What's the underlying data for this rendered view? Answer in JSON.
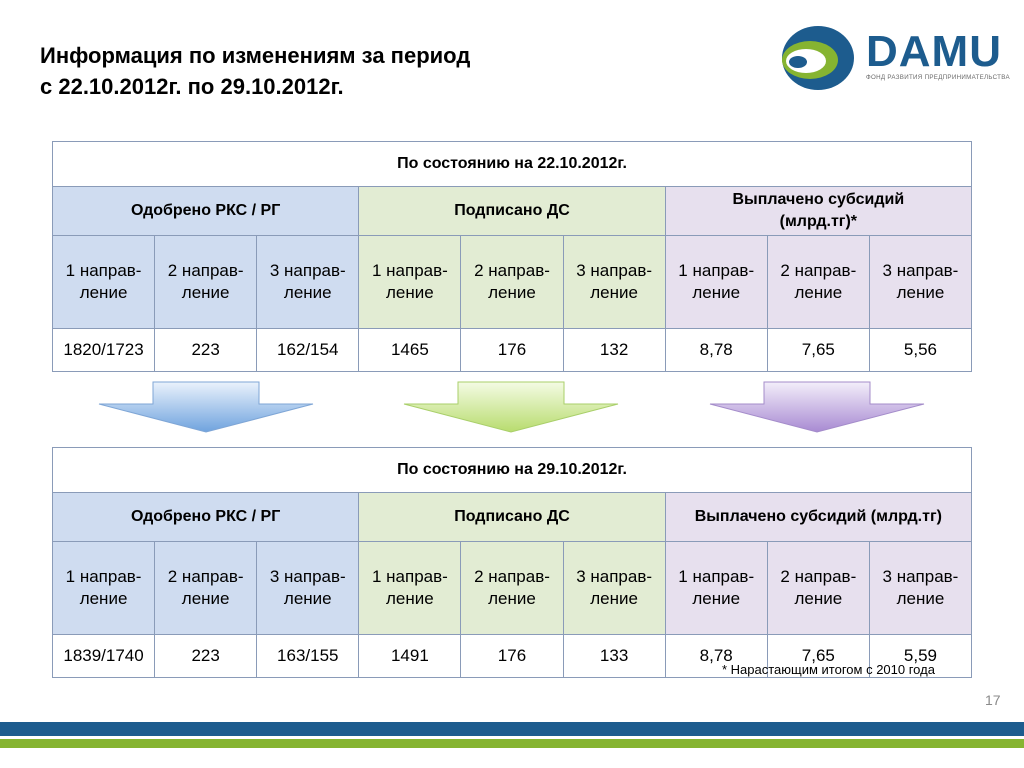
{
  "title": {
    "line1": "Информация по изменениям за период",
    "line2": "с 22.10.2012г. по 29.10.2012г."
  },
  "logo": {
    "wordmark": "DAMU",
    "subtitle": "ФОНД РАЗВИТИЯ ПРЕДПРИНИМАТЕЛЬСТВА",
    "colors": {
      "blue": "#1d5c8e",
      "green": "#86b431"
    }
  },
  "table1": {
    "heading": "По состоянию на 22.10.2012г.",
    "groups": {
      "approved": "Одобрено РКС / РГ",
      "signed": "Подписано ДС",
      "paid_line1": "Выплачено субсидий",
      "paid_line2": "(млрд.тг)*"
    },
    "directions": [
      {
        "line1": "1 направ-",
        "line2": "ление"
      },
      {
        "line1": "2 направ-",
        "line2": "ление"
      },
      {
        "line1": "3 направ-",
        "line2": "ление"
      },
      {
        "line1": "1 направ-",
        "line2": "ление"
      },
      {
        "line1": "2 направ-",
        "line2": "ление"
      },
      {
        "line1": "3 направ-",
        "line2": "ление"
      },
      {
        "line1": "1 направ-",
        "line2": "ление"
      },
      {
        "line1": "2 направ-",
        "line2": "ление"
      },
      {
        "line1": "3 направ-",
        "line2": "ление"
      }
    ],
    "values": [
      "1820/1723",
      "223",
      "162/154",
      "1465",
      "176",
      "132",
      "8,78",
      "7,65",
      "5,56"
    ]
  },
  "table2": {
    "heading": "По состоянию на 29.10.2012г.",
    "groups": {
      "approved": "Одобрено РКС / РГ",
      "signed": "Подписано ДС",
      "paid": "Выплачено субсидий (млрд.тг)"
    },
    "directions": [
      {
        "line1": "1 направ-",
        "line2": "ление"
      },
      {
        "line1": "2 направ-",
        "line2": "ление"
      },
      {
        "line1": "3 направ-",
        "line2": "ление"
      },
      {
        "line1": "1 направ-",
        "line2": "ление"
      },
      {
        "line1": "2 направ-",
        "line2": "ление"
      },
      {
        "line1": "3 направ-",
        "line2": "ление"
      },
      {
        "line1": "1 направ-",
        "line2": "ление"
      },
      {
        "line1": "2 направ-",
        "line2": "ление"
      },
      {
        "line1": "3 направ-",
        "line2": "ление"
      }
    ],
    "values": [
      "1839/1740",
      "223",
      "163/155",
      "1491",
      "176",
      "133",
      "8,78",
      "7,65",
      "5,59"
    ]
  },
  "colors": {
    "group_blue": "#cfdcf0",
    "group_green": "#e2ecd3",
    "group_lilac": "#e7e0ee",
    "border": "#8a9bb8"
  },
  "footnote": "* Нарастающим итогом  с 2010 года",
  "page_number": "17"
}
